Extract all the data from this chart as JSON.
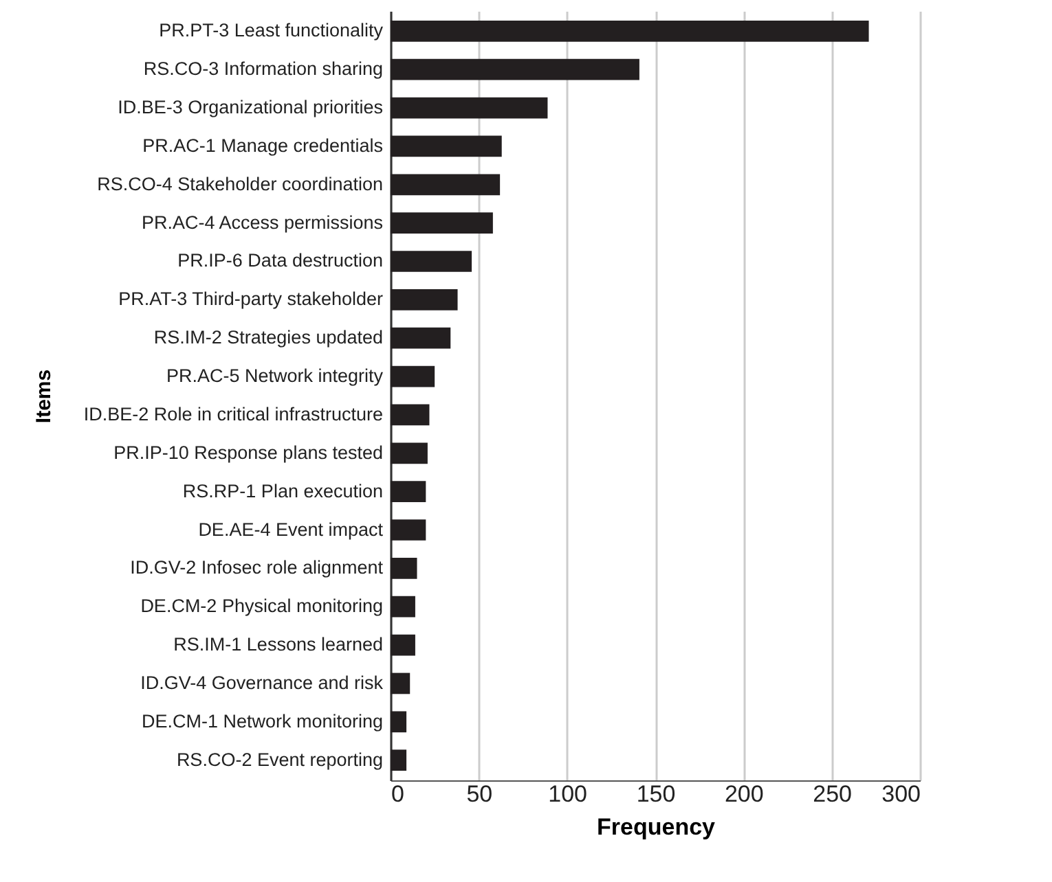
{
  "chart_data": {
    "type": "bar",
    "orientation": "horizontal",
    "xlabel": "Frequency",
    "ylabel": "Items",
    "categories": [
      "PR.PT-3 Least functionality",
      "RS.CO-3 Information sharing",
      "ID.BE-3 Organizational priorities",
      "PR.AC-1 Manage credentials",
      "RS.CO-4 Stakeholder coordination",
      "PR.AC-4 Access permissions",
      "PR.IP-6 Data destruction",
      "PR.AT-3 Third-party stakeholder",
      "RS.IM-2 Strategies updated",
      "PR.AC-5 Network integrity",
      "ID.BE-2 Role in critical infrastructure",
      "PR.IP-10 Response plans tested",
      "RS.RP-1 Plan execution",
      "DE.AE-4 Event impact",
      "ID.GV-2 Infosec role alignment",
      "DE.CM-2 Physical monitoring",
      "RS.IM-1 Lessons learned",
      "ID.GV-4 Governance and risk",
      "DE.CM-1 Network monitoring",
      "RS.CO-2 Event reporting"
    ],
    "values": [
      271,
      141,
      89,
      63,
      62,
      58,
      46,
      38,
      34,
      25,
      22,
      21,
      20,
      20,
      15,
      14,
      14,
      11,
      9,
      9
    ],
    "color": "#231f20",
    "xlim": [
      0,
      300
    ],
    "xticks": [
      0,
      50,
      100,
      150,
      200,
      250,
      300
    ],
    "grid": "x"
  }
}
